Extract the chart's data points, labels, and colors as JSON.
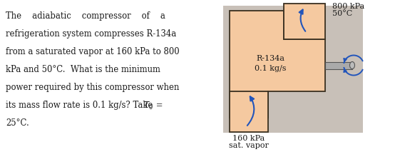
{
  "fig_width": 5.54,
  "fig_height": 2.13,
  "dpi": 100,
  "bg_color": "#ffffff",
  "text_color": "#1a1a1a",
  "compressor_fill": "#f5c9a0",
  "compressor_edge": "#3a3020",
  "shadow_color": "#c8c0b8",
  "arrow_color": "#2255bb",
  "shaft_fill": "#aaaaaa",
  "shaft_edge": "#555555",
  "label_800kPa": "800 kPa",
  "label_50C": "50°C",
  "label_R134a": "R-134a",
  "label_flow": "0.1 kg/s",
  "label_160kPa": "160 kPa",
  "label_sat": "sat. vapor",
  "text_lines": [
    "The    adiabatic    compressor    of    a",
    "refrigeration system compresses R-134a",
    "from a saturated vapor at 160 kPa to 800",
    "kPa and 50°C.  What is the minimum",
    "power required by this compressor when"
  ],
  "line6_pre": "its mass flow rate is 0.1 kg/s? Take ",
  "line6_T0": "T",
  "line6_post": " =",
  "line7": "25°C."
}
